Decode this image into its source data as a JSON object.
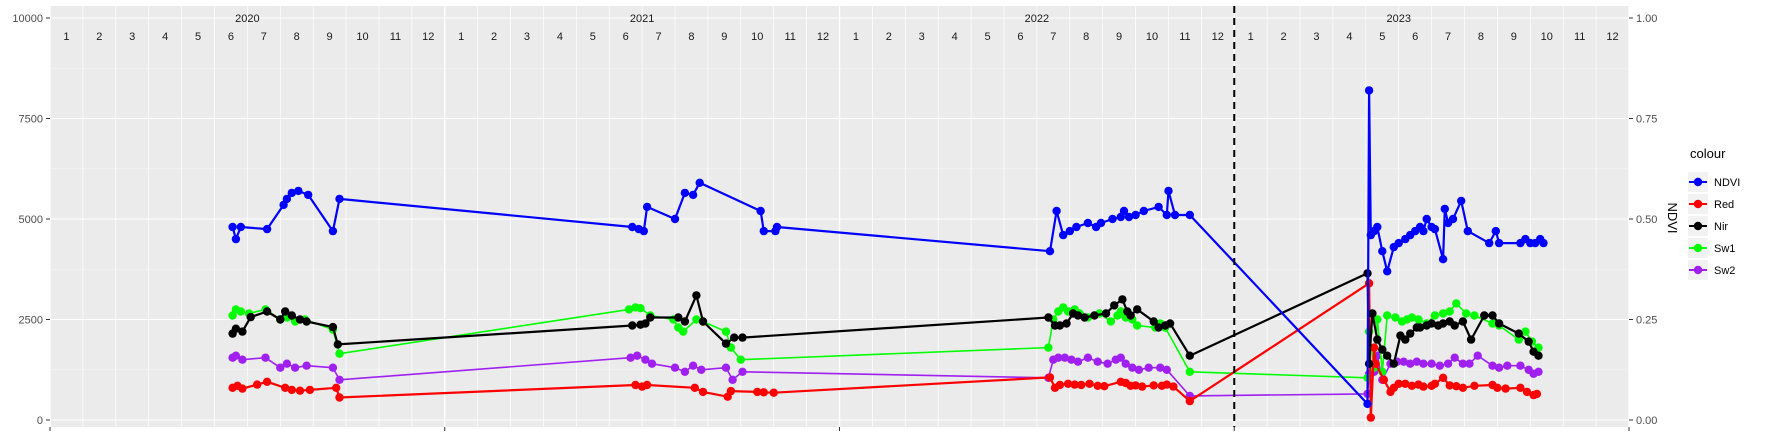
{
  "chart_data": {
    "type": "line",
    "title": "",
    "xlabel": "",
    "ylabel": "",
    "y2label": "NDVI",
    "ylim": [
      0,
      10000
    ],
    "y2lim": [
      0,
      1
    ],
    "yticks": [
      "0",
      "2500",
      "5000",
      "7500",
      "10000"
    ],
    "y2ticks": [
      "0.00",
      "0.25",
      "0.50",
      "0.75",
      "1.00"
    ],
    "years": [
      {
        "label": "2020",
        "start_month": 1
      },
      {
        "label": "2021",
        "start_month": 13
      },
      {
        "label": "2022",
        "start_month": 25
      },
      {
        "label": "2023",
        "start_month": 37
      }
    ],
    "month_labels": [
      "1",
      "2",
      "3",
      "4",
      "5",
      "6",
      "7",
      "8",
      "9",
      "10",
      "11",
      "12"
    ],
    "x_range": [
      0.5,
      48.5
    ],
    "vline_at_month": 36.5,
    "legend": {
      "title": "colour",
      "position": "right"
    },
    "grid": true,
    "series": [
      {
        "name": "NDVI",
        "color": "#0000ff",
        "axis": "y2",
        "line_width": 2.2,
        "x": [
          6.05,
          6.15,
          6.3,
          7.1,
          7.6,
          7.7,
          7.85,
          8.05,
          8.35,
          9.1,
          9.3,
          18.2,
          18.4,
          18.55,
          18.65,
          19.5,
          19.8,
          20.05,
          20.25,
          22.1,
          22.2,
          22.55,
          22.6,
          30.9,
          31.1,
          31.3,
          31.5,
          31.7,
          32.05,
          32.3,
          32.45,
          32.8,
          33.05,
          33.15,
          33.3,
          33.5,
          33.75,
          34.2,
          34.45,
          34.5,
          34.7,
          35.15,
          40.55,
          40.6,
          40.65,
          40.75,
          40.85,
          41,
          41.15,
          41.35,
          41.5,
          41.7,
          41.85,
          42,
          42.15,
          42.25,
          42.35,
          42.5,
          42.6,
          42.85,
          42.9,
          43,
          43.15,
          43.4,
          43.6,
          44.25,
          44.45,
          44.55,
          45.2,
          45.35,
          45.5,
          45.65,
          45.8,
          45.9
        ],
        "y": [
          0.48,
          0.45,
          0.48,
          0.475,
          0.535,
          0.55,
          0.565,
          0.57,
          0.56,
          0.47,
          0.55,
          0.48,
          0.475,
          0.47,
          0.53,
          0.5,
          0.565,
          0.56,
          0.59,
          0.52,
          0.47,
          0.47,
          0.48,
          0.42,
          0.52,
          0.46,
          0.47,
          0.48,
          0.49,
          0.48,
          0.49,
          0.5,
          0.505,
          0.52,
          0.505,
          0.51,
          0.52,
          0.53,
          0.51,
          0.57,
          0.51,
          0.51,
          0.04,
          0.82,
          0.46,
          0.47,
          0.48,
          0.42,
          0.37,
          0.43,
          0.44,
          0.45,
          0.46,
          0.47,
          0.48,
          0.47,
          0.5,
          0.48,
          0.475,
          0.4,
          0.525,
          0.49,
          0.5,
          0.545,
          0.47,
          0.44,
          0.47,
          0.44,
          0.44,
          0.45,
          0.44,
          0.44,
          0.45,
          0.44
        ]
      },
      {
        "name": "Red",
        "color": "#ff0000",
        "axis": "y",
        "line_width": 2.2,
        "x": [
          6.05,
          6.2,
          6.35,
          6.8,
          7.1,
          7.65,
          7.85,
          8.1,
          8.4,
          9.2,
          9.3,
          18.3,
          18.5,
          18.65,
          20.1,
          20.35,
          21.1,
          21.2,
          22,
          22.2,
          22.5,
          30.9,
          31.05,
          31.2,
          31.45,
          31.65,
          31.85,
          32.1,
          32.35,
          32.55,
          33.05,
          33.2,
          33.35,
          33.5,
          33.7,
          34.05,
          34.3,
          34.45,
          34.65,
          35.15,
          40.6,
          40.65,
          40.75,
          40.8,
          41.05,
          41.25,
          41.35,
          41.5,
          41.7,
          41.9,
          42.1,
          42.25,
          42.5,
          42.6,
          42.85,
          43.05,
          43.25,
          43.45,
          43.8,
          44.35,
          44.5,
          44.75,
          45.2,
          45.4,
          45.6,
          45.7
        ],
        "y": [
          800,
          850,
          780,
          880,
          950,
          800,
          750,
          730,
          750,
          800,
          560,
          870,
          830,
          870,
          800,
          700,
          580,
          720,
          700,
          690,
          680,
          1060,
          800,
          870,
          900,
          880,
          870,
          900,
          850,
          840,
          950,
          920,
          850,
          860,
          830,
          860,
          850,
          880,
          830,
          470,
          3400,
          60,
          1800,
          1400,
          1000,
          700,
          800,
          900,
          900,
          850,
          880,
          830,
          850,
          900,
          1050,
          860,
          840,
          800,
          850,
          870,
          800,
          780,
          800,
          700,
          620,
          650
        ]
      },
      {
        "name": "Nir",
        "color": "#000000",
        "axis": "y",
        "line_width": 2.2,
        "x": [
          6.05,
          6.15,
          6.35,
          6.6,
          7.1,
          7.5,
          7.65,
          7.85,
          8.1,
          8.3,
          9.1,
          9.25,
          18.2,
          18.45,
          18.6,
          18.75,
          19.6,
          19.8,
          20.15,
          20.35,
          21.05,
          21.3,
          21.55,
          30.85,
          31.05,
          31.2,
          31.4,
          31.6,
          31.75,
          31.95,
          32.25,
          32.6,
          32.85,
          33.1,
          33.25,
          33.35,
          33.55,
          34.05,
          34.2,
          34.4,
          34.55,
          35.15,
          40.55,
          40.6,
          40.7,
          40.85,
          41,
          41.15,
          41.35,
          41.55,
          41.7,
          41.85,
          42.05,
          42.15,
          42.35,
          42.5,
          42.7,
          42.85,
          43.05,
          43.2,
          43.45,
          43.7,
          44.1,
          44.35,
          44.55,
          45.15,
          45.45,
          45.6,
          45.75
        ],
        "y": [
          2150,
          2270,
          2200,
          2560,
          2700,
          2500,
          2700,
          2600,
          2500,
          2450,
          2310,
          1880,
          2350,
          2370,
          2400,
          2550,
          2550,
          2450,
          3100,
          2450,
          1900,
          2050,
          2050,
          2550,
          2350,
          2350,
          2400,
          2650,
          2600,
          2550,
          2600,
          2650,
          2850,
          3000,
          2700,
          2600,
          2750,
          2450,
          2300,
          2350,
          2400,
          1600,
          3650,
          1400,
          2650,
          2000,
          1750,
          1600,
          1400,
          2100,
          2000,
          2150,
          2300,
          2300,
          2350,
          2400,
          2350,
          2400,
          2450,
          2350,
          2450,
          2000,
          2600,
          2600,
          2400,
          2150,
          1950,
          1700,
          1600
        ]
      },
      {
        "name": "Sw1",
        "color": "#00ff00",
        "axis": "y",
        "line_width": 1.6,
        "x": [
          6.05,
          6.15,
          6.3,
          6.55,
          7.05,
          7.5,
          7.7,
          7.95,
          8.25,
          9.1,
          9.3,
          18.1,
          18.3,
          18.45,
          18.75,
          19.45,
          19.6,
          19.75,
          20.15,
          20.35,
          21.05,
          21.2,
          21.5,
          30.85,
          31,
          31.15,
          31.3,
          31.45,
          31.65,
          31.8,
          32.05,
          32.4,
          32.75,
          32.95,
          33.05,
          33.2,
          33.4,
          33.55,
          34.1,
          34.25,
          34.4,
          35.15,
          40.55,
          40.6,
          40.75,
          40.85,
          41,
          41.15,
          41.4,
          41.6,
          41.75,
          41.9,
          42.1,
          42.35,
          42.6,
          42.85,
          43.05,
          43.25,
          43.55,
          43.8,
          44.35,
          44.55,
          45.15,
          45.35,
          45.55,
          45.75
        ],
        "y": [
          2600,
          2750,
          2700,
          2650,
          2750,
          2500,
          2550,
          2450,
          2500,
          2250,
          1650,
          2750,
          2800,
          2780,
          2600,
          2500,
          2300,
          2200,
          2500,
          2450,
          2200,
          1800,
          1500,
          1800,
          2500,
          2700,
          2800,
          2700,
          2750,
          2650,
          2550,
          2650,
          2450,
          2600,
          2700,
          2550,
          2500,
          2350,
          2300,
          2400,
          2300,
          1200,
          1050,
          2200,
          1300,
          2500,
          1200,
          2600,
          2550,
          2450,
          2500,
          2550,
          2500,
          2400,
          2600,
          2650,
          2700,
          2900,
          2650,
          2600,
          2400,
          2350,
          2000,
          2200,
          1950,
          1800
        ]
      },
      {
        "name": "Sw2",
        "color": "#a020f0",
        "axis": "y",
        "line_width": 1.6,
        "x": [
          6.05,
          6.15,
          6.35,
          7.05,
          7.5,
          7.7,
          7.95,
          8.3,
          9.1,
          9.3,
          18.15,
          18.35,
          18.6,
          18.8,
          19.5,
          19.8,
          20.05,
          20.3,
          21.05,
          21.25,
          21.55,
          30.85,
          31,
          31.15,
          31.35,
          31.55,
          31.75,
          32.05,
          32.35,
          32.65,
          32.9,
          33.05,
          33.2,
          33.4,
          33.6,
          33.9,
          34.25,
          34.45,
          35.15,
          40.55,
          40.6,
          40.75,
          40.85,
          41,
          41.25,
          41.45,
          41.65,
          41.85,
          42.05,
          42.25,
          42.5,
          42.75,
          43,
          43.2,
          43.45,
          43.65,
          43.9,
          44.35,
          44.55,
          44.8,
          45.2,
          45.45,
          45.6,
          45.75
        ],
        "y": [
          1550,
          1600,
          1500,
          1550,
          1300,
          1400,
          1300,
          1350,
          1300,
          1000,
          1550,
          1600,
          1500,
          1400,
          1300,
          1200,
          1350,
          1250,
          1300,
          1000,
          1200,
          1050,
          1500,
          1550,
          1550,
          1500,
          1450,
          1550,
          1450,
          1400,
          1500,
          1550,
          1400,
          1300,
          1250,
          1300,
          1300,
          1250,
          600,
          650,
          1150,
          1200,
          1600,
          1000,
          1400,
          1450,
          1450,
          1400,
          1450,
          1400,
          1400,
          1350,
          1400,
          1550,
          1400,
          1400,
          1600,
          1350,
          1300,
          1350,
          1350,
          1250,
          1150,
          1200
        ]
      }
    ]
  }
}
